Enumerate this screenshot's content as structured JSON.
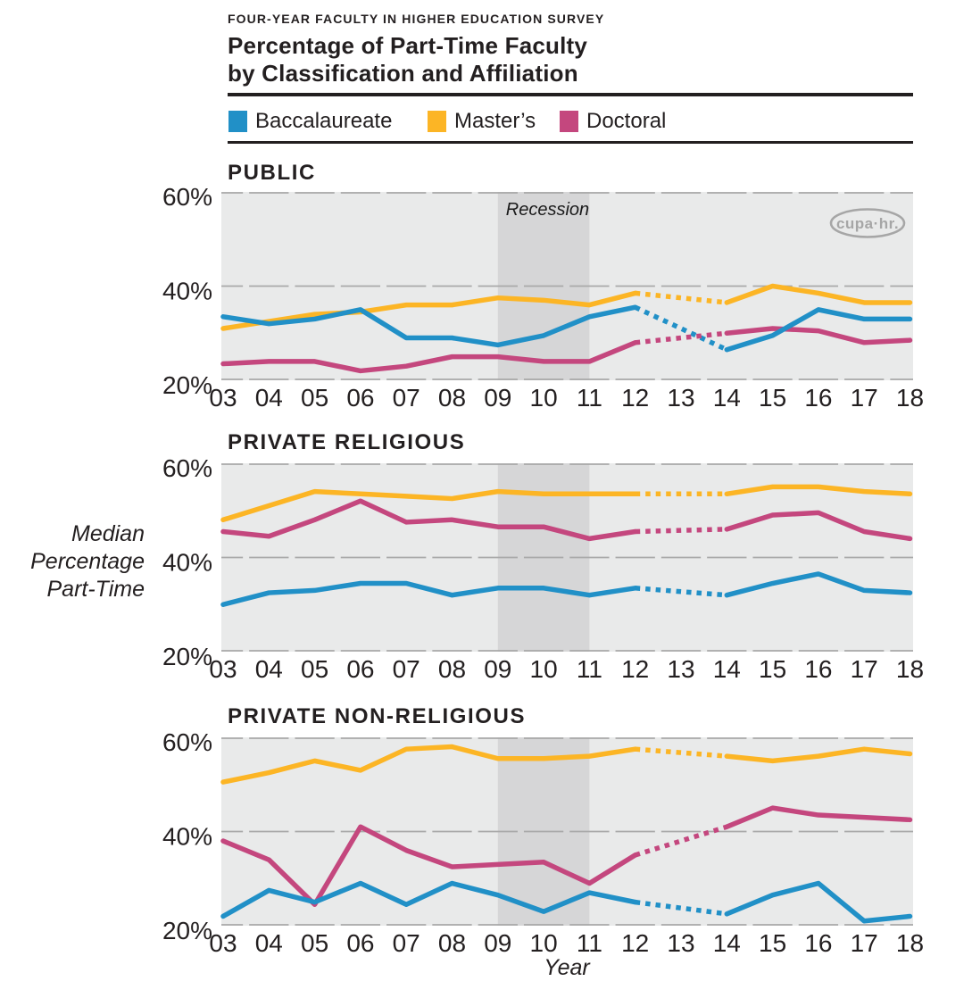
{
  "header": {
    "eyebrow": "FOUR-YEAR FACULTY IN HIGHER EDUCATION SURVEY",
    "title_line1": "Percentage of Part-Time Faculty",
    "title_line2": "by Classification and Affiliation"
  },
  "legend": {
    "items": [
      {
        "label": "Baccalaureate",
        "color": "#2190c7"
      },
      {
        "label": "Master’s",
        "color": "#fcb525"
      },
      {
        "label": "Doctoral",
        "color": "#c4477e"
      }
    ]
  },
  "axis": {
    "y_label_lines": [
      "Median",
      "Percentage",
      "Part-Time"
    ],
    "x_label": "Year"
  },
  "annotations": {
    "recession_label": "Recession",
    "logo_text": "cupa·hr."
  },
  "theme": {
    "plot_bg": "#e9eaea",
    "recession_band": "#d6d6d7",
    "gridline": "#a9a9a9",
    "logo_gray": "#a6a6a6",
    "text": "#231f20"
  },
  "chart_data": [
    {
      "type": "line",
      "title": "PUBLIC",
      "categories": [
        "03",
        "04",
        "05",
        "06",
        "07",
        "08",
        "09",
        "10",
        "11",
        "12",
        "13",
        "14",
        "15",
        "16",
        "17",
        "18"
      ],
      "ylim": [
        20,
        60
      ],
      "yticks": [
        60,
        40,
        20
      ],
      "ytick_suffix": "%",
      "grid": true,
      "recession_span": [
        "09",
        "11"
      ],
      "dotted_span": [
        "12",
        "14"
      ],
      "show_recession_label": true,
      "show_logo": true,
      "series": [
        {
          "name": "Baccalaureate",
          "color": "#2190c7",
          "values": [
            33.5,
            32,
            33,
            35,
            29,
            29,
            27.5,
            29.5,
            33.5,
            35.5,
            null,
            26.5,
            29.5,
            35,
            33,
            33
          ]
        },
        {
          "name": "Master's",
          "color": "#fcb525",
          "values": [
            31,
            32.5,
            34,
            34.5,
            36,
            36,
            37.5,
            37,
            36,
            38.5,
            null,
            36.5,
            40,
            38.5,
            36.5,
            36.5
          ]
        },
        {
          "name": "Doctoral",
          "color": "#c4477e",
          "values": [
            23.5,
            24,
            24,
            22,
            23,
            25,
            25,
            24,
            24,
            28,
            null,
            30,
            31,
            30.5,
            28,
            28.5
          ]
        }
      ]
    },
    {
      "type": "line",
      "title": "PRIVATE RELIGIOUS",
      "categories": [
        "03",
        "04",
        "05",
        "06",
        "07",
        "08",
        "09",
        "10",
        "11",
        "12",
        "13",
        "14",
        "15",
        "16",
        "17",
        "18"
      ],
      "ylim": [
        20,
        60
      ],
      "yticks": [
        60,
        40,
        20
      ],
      "ytick_suffix": "%",
      "grid": true,
      "recession_span": [
        "09",
        "11"
      ],
      "dotted_span": [
        "12",
        "14"
      ],
      "show_recession_label": false,
      "show_logo": false,
      "series": [
        {
          "name": "Baccalaureate",
          "color": "#2190c7",
          "values": [
            30,
            32.5,
            33,
            34.5,
            34.5,
            32,
            33.5,
            33.5,
            32,
            33.5,
            null,
            32,
            34.5,
            36.5,
            33,
            32.5
          ]
        },
        {
          "name": "Master's",
          "color": "#fcb525",
          "values": [
            48,
            51,
            54,
            53.5,
            53,
            52.5,
            54,
            53.5,
            53.5,
            53.5,
            null,
            53.5,
            55,
            55,
            54,
            53.5
          ]
        },
        {
          "name": "Doctoral",
          "color": "#c4477e",
          "values": [
            45.5,
            44.5,
            48,
            52,
            47.5,
            48,
            46.5,
            46.5,
            44,
            45.5,
            null,
            46,
            49,
            49.5,
            45.5,
            44
          ]
        }
      ]
    },
    {
      "type": "line",
      "title": "PRIVATE NON-RELIGIOUS",
      "categories": [
        "03",
        "04",
        "05",
        "06",
        "07",
        "08",
        "09",
        "10",
        "11",
        "12",
        "13",
        "14",
        "15",
        "16",
        "17",
        "18"
      ],
      "ylim": [
        20,
        60
      ],
      "yticks": [
        60,
        40,
        20
      ],
      "ytick_suffix": "%",
      "grid": true,
      "recession_span": [
        "09",
        "11"
      ],
      "dotted_span": [
        "12",
        "14"
      ],
      "show_recession_label": false,
      "show_logo": false,
      "series": [
        {
          "name": "Baccalaureate",
          "color": "#2190c7",
          "values": [
            22,
            27.5,
            25,
            29,
            24.5,
            29,
            26.5,
            23,
            27,
            25,
            null,
            22.5,
            26.5,
            29,
            21,
            22
          ]
        },
        {
          "name": "Master's",
          "color": "#fcb525",
          "values": [
            50.5,
            52.5,
            55,
            53,
            57.5,
            58,
            55.5,
            55.5,
            56,
            57.5,
            null,
            56,
            55,
            56,
            57.5,
            56.5
          ]
        },
        {
          "name": "Doctoral",
          "color": "#c4477e",
          "values": [
            38,
            34,
            24.5,
            41,
            36,
            32.5,
            33,
            33.5,
            29,
            35,
            null,
            41,
            45,
            43.5,
            43,
            42.5
          ]
        }
      ]
    }
  ]
}
